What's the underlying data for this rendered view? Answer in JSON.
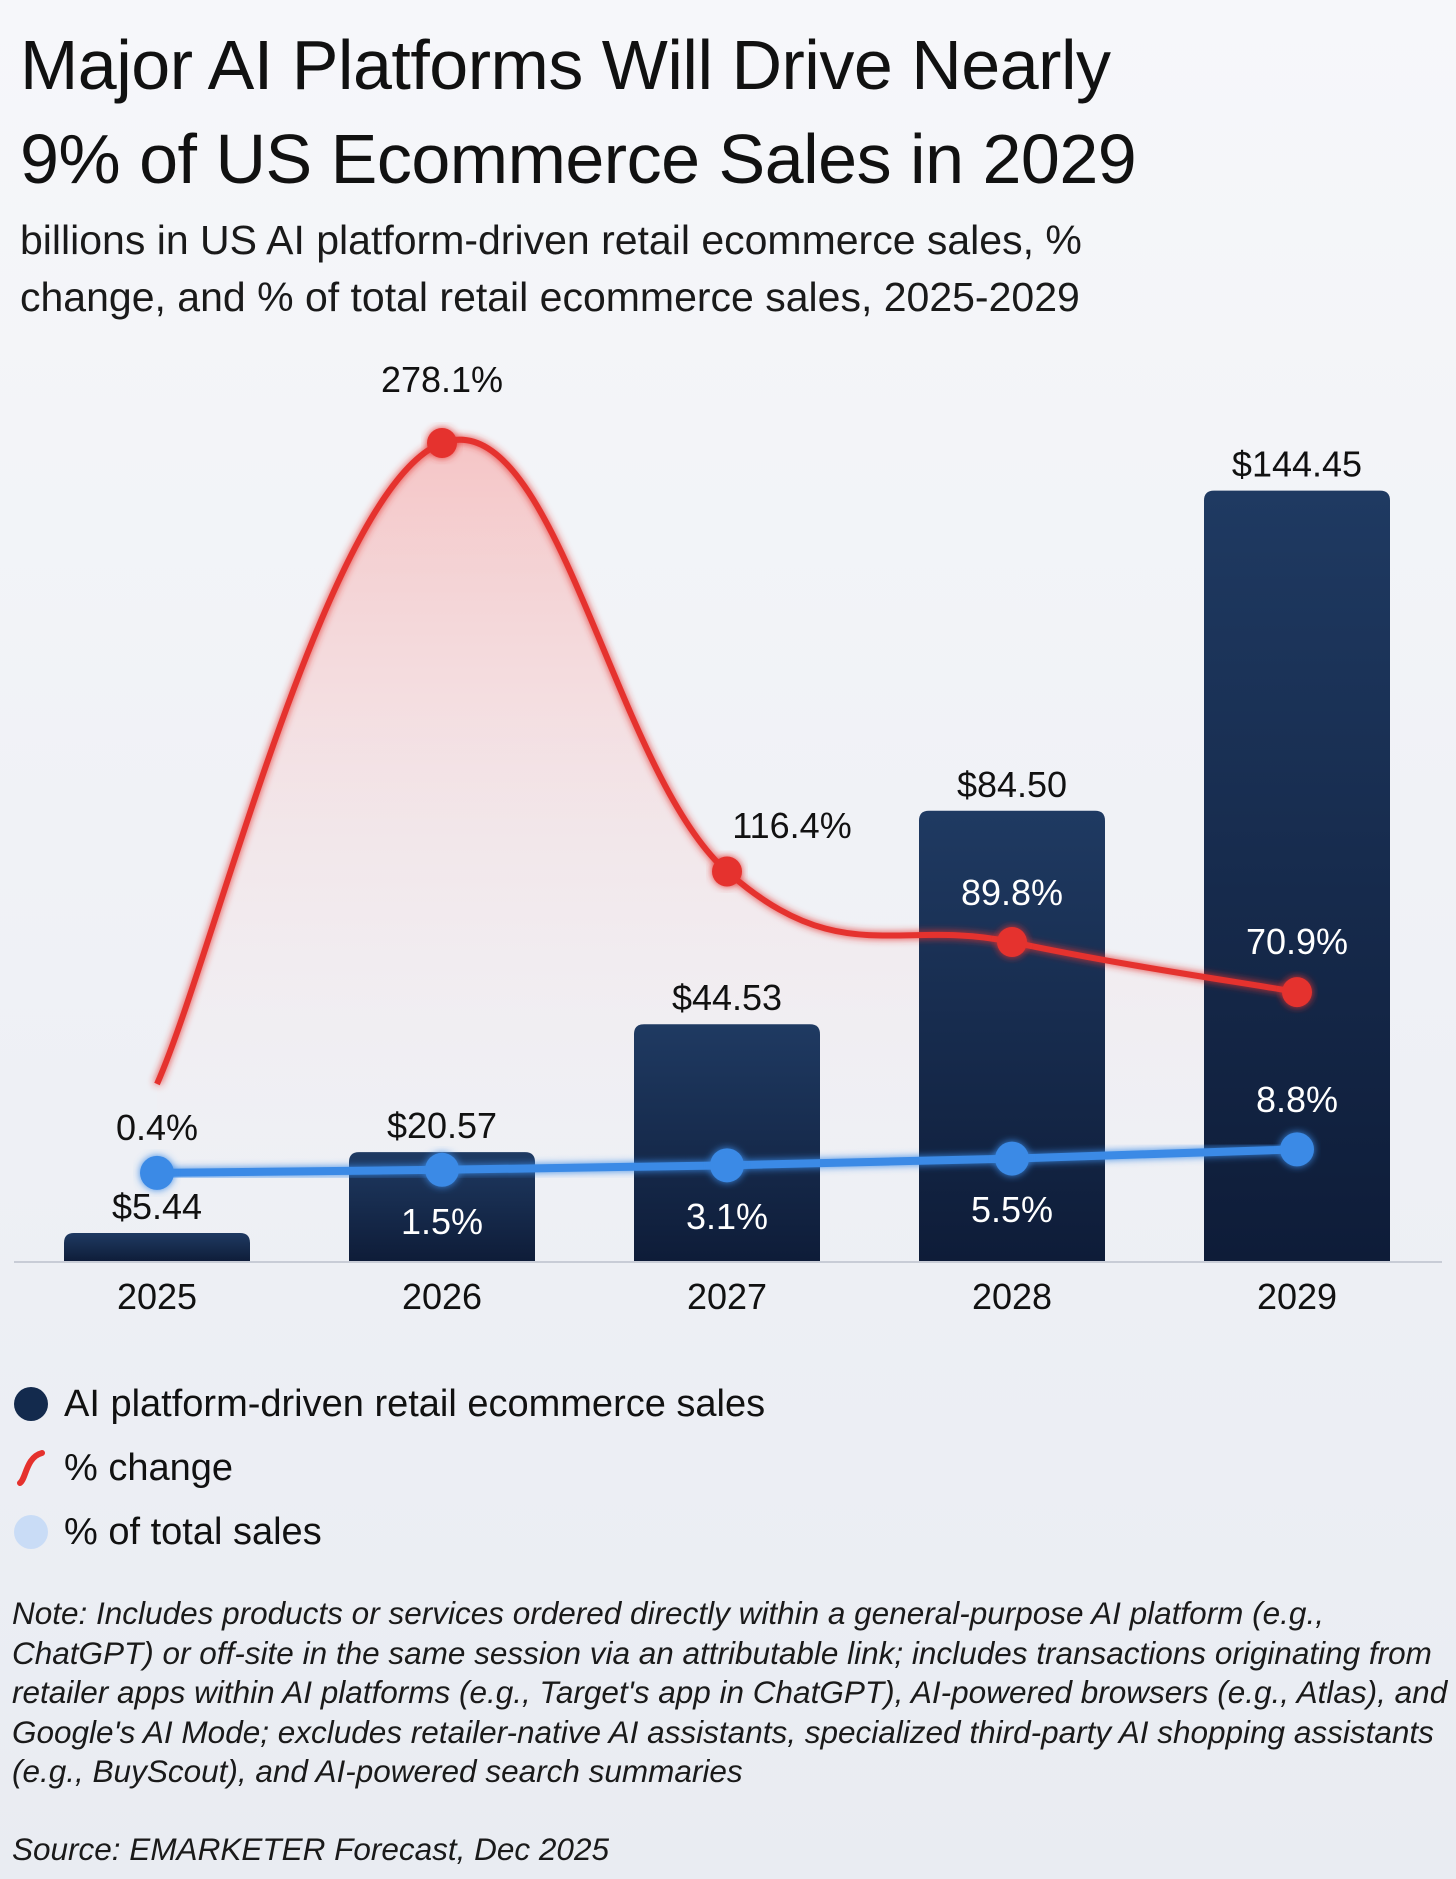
{
  "title_line1": "Major AI Platforms Will Drive Nearly",
  "title_line2": "9% of US Ecommerce Sales in 2029",
  "subtitle_line1": "billions in US AI platform-driven retail ecommerce sales, %",
  "subtitle_line2": "change, and % of total retail ecommerce sales, 2025-2029",
  "colors": {
    "bar": "#1b3358",
    "bar_dark": "#0e1c38",
    "change": "#e5312d",
    "share": "#3a8ae6"
  },
  "chart_data": {
    "type": "bar",
    "title": "Major AI Platforms Will Drive Nearly 9% of US Ecommerce Sales in 2029",
    "categories": [
      "2025",
      "2026",
      "2027",
      "2028",
      "2029"
    ],
    "series": [
      {
        "name": "AI platform-driven retail ecommerce sales",
        "type": "bar",
        "unit": "billions USD",
        "values": [
          5.44,
          20.57,
          44.53,
          84.5,
          144.45
        ],
        "labels": [
          "$5.44",
          "$20.57",
          "$44.53",
          "$84.50",
          "$144.45"
        ]
      },
      {
        "name": "% change",
        "type": "line",
        "values": [
          null,
          278.1,
          116.4,
          89.8,
          70.9
        ],
        "labels": [
          "",
          "278.1%",
          "116.4%",
          "89.8%",
          "70.9%"
        ]
      },
      {
        "name": "% of total sales",
        "type": "line",
        "values": [
          0.4,
          1.5,
          3.1,
          5.5,
          8.8
        ],
        "labels": [
          "0.4%",
          "1.5%",
          "3.1%",
          "5.5%",
          "8.8%"
        ]
      }
    ],
    "xlabel": "",
    "ylabel": "",
    "grid": false,
    "legend": "bottom-left"
  },
  "legend": [
    {
      "label": "AI platform-driven retail ecommerce sales",
      "icon": "dark-blue-circle"
    },
    {
      "label": "% change",
      "icon": "red-curve"
    },
    {
      "label": "% of total sales",
      "icon": "light-blue-circle"
    }
  ],
  "note": "Note: Includes products or services ordered directly within a general-purpose AI platform (e.g., ChatGPT) or off-site in the same session via an attributable link; includes transactions originating from retailer apps within AI platforms (e.g., Target's app in ChatGPT), AI-powered browsers (e.g., Atlas), and Google's AI Mode; excludes retailer-native AI assistants, specialized third-party AI shopping assistants (e.g., BuyScout), and AI-powered search summaries",
  "source": "Source: EMARKETER Forecast, Dec 2025"
}
